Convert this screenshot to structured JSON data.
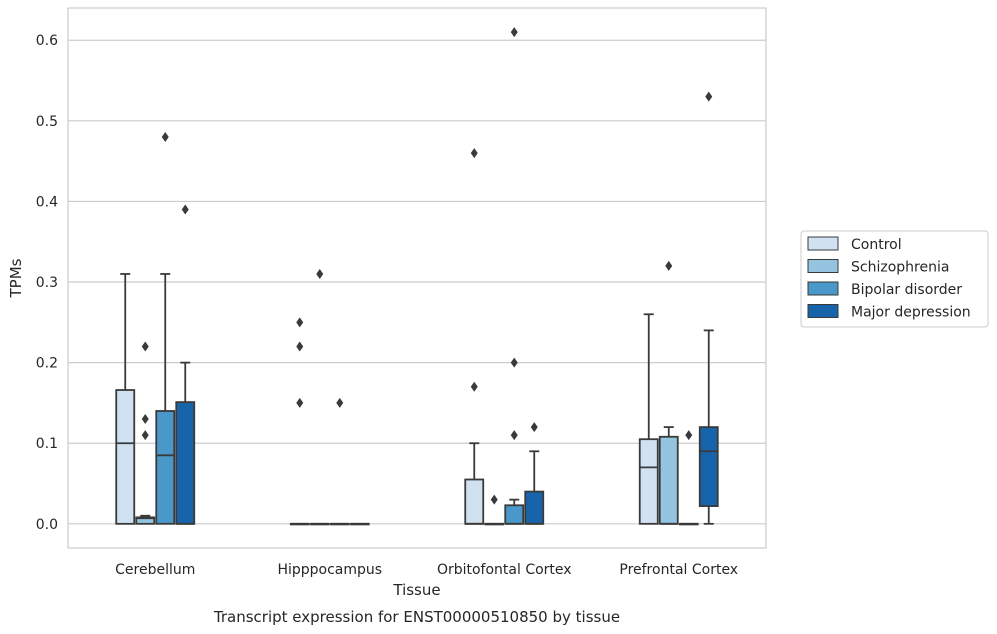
{
  "chart_data": {
    "type": "box",
    "xlabel": "Tissue",
    "ylabel": "TPMs",
    "caption": "Transcript expression for ENST00000510850 by tissue",
    "ylim": [
      -0.03,
      0.64
    ],
    "yticks": [
      0.0,
      0.1,
      0.2,
      0.3,
      0.4,
      0.5,
      0.6
    ],
    "ytick_labels": [
      "0.0",
      "0.1",
      "0.2",
      "0.3",
      "0.4",
      "0.5",
      "0.6"
    ],
    "grid": true,
    "legend_position": "right",
    "categories": [
      "Cerebellum",
      "Hipppocampus",
      "Orbitofontal Cortex",
      "Prefrontal Cortex"
    ],
    "series": [
      {
        "name": "Control",
        "color": "#d0e1f2",
        "boxes": [
          {
            "q1": 0.0,
            "median": 0.1,
            "q3": 0.166,
            "whisker_low": 0.0,
            "whisker_high": 0.31,
            "outliers": []
          },
          {
            "q1": 0.0,
            "median": 0.0,
            "q3": 0.0,
            "whisker_low": 0.0,
            "whisker_high": 0.0,
            "outliers": [
              0.15,
              0.22,
              0.25
            ]
          },
          {
            "q1": 0.0,
            "median": 0.0,
            "q3": 0.055,
            "whisker_low": 0.0,
            "whisker_high": 0.1,
            "outliers": [
              0.17,
              0.46
            ]
          },
          {
            "q1": 0.0,
            "median": 0.07,
            "q3": 0.105,
            "whisker_low": 0.0,
            "whisker_high": 0.26,
            "outliers": []
          }
        ]
      },
      {
        "name": "Schizophrenia",
        "color": "#94c4df",
        "boxes": [
          {
            "q1": 0.0,
            "median": 0.007,
            "q3": 0.008,
            "whisker_low": 0.0,
            "whisker_high": 0.01,
            "outliers": [
              0.11,
              0.13,
              0.22
            ]
          },
          {
            "q1": 0.0,
            "median": 0.0,
            "q3": 0.0,
            "whisker_low": 0.0,
            "whisker_high": 0.0,
            "outliers": [
              0.31
            ]
          },
          {
            "q1": 0.0,
            "median": 0.0,
            "q3": 0.0,
            "whisker_low": 0.0,
            "whisker_high": 0.0,
            "outliers": [
              0.03
            ]
          },
          {
            "q1": 0.0,
            "median": 0.0,
            "q3": 0.108,
            "whisker_low": 0.0,
            "whisker_high": 0.12,
            "outliers": [
              0.32
            ]
          }
        ]
      },
      {
        "name": "Bipolar disorder",
        "color": "#4a98c9",
        "boxes": [
          {
            "q1": 0.0,
            "median": 0.085,
            "q3": 0.14,
            "whisker_low": 0.0,
            "whisker_high": 0.31,
            "outliers": [
              0.48
            ]
          },
          {
            "q1": 0.0,
            "median": 0.0,
            "q3": 0.0,
            "whisker_low": 0.0,
            "whisker_high": 0.0,
            "outliers": [
              0.15
            ]
          },
          {
            "q1": 0.0,
            "median": 0.0,
            "q3": 0.023,
            "whisker_low": 0.0,
            "whisker_high": 0.03,
            "outliers": [
              0.11,
              0.2,
              0.61
            ]
          },
          {
            "q1": 0.0,
            "median": 0.0,
            "q3": 0.0,
            "whisker_low": 0.0,
            "whisker_high": 0.0,
            "outliers": [
              0.11
            ]
          }
        ]
      },
      {
        "name": "Major depression",
        "color": "#1764ab",
        "boxes": [
          {
            "q1": 0.0,
            "median": 0.0,
            "q3": 0.151,
            "whisker_low": 0.0,
            "whisker_high": 0.2,
            "outliers": [
              0.39
            ]
          },
          {
            "q1": 0.0,
            "median": 0.0,
            "q3": 0.0,
            "whisker_low": 0.0,
            "whisker_high": 0.0,
            "outliers": []
          },
          {
            "q1": 0.0,
            "median": 0.0,
            "q3": 0.04,
            "whisker_low": 0.0,
            "whisker_high": 0.09,
            "outliers": [
              0.12
            ]
          },
          {
            "q1": 0.022,
            "median": 0.09,
            "q3": 0.12,
            "whisker_low": 0.0,
            "whisker_high": 0.24,
            "outliers": [
              0.53
            ]
          }
        ]
      }
    ]
  }
}
